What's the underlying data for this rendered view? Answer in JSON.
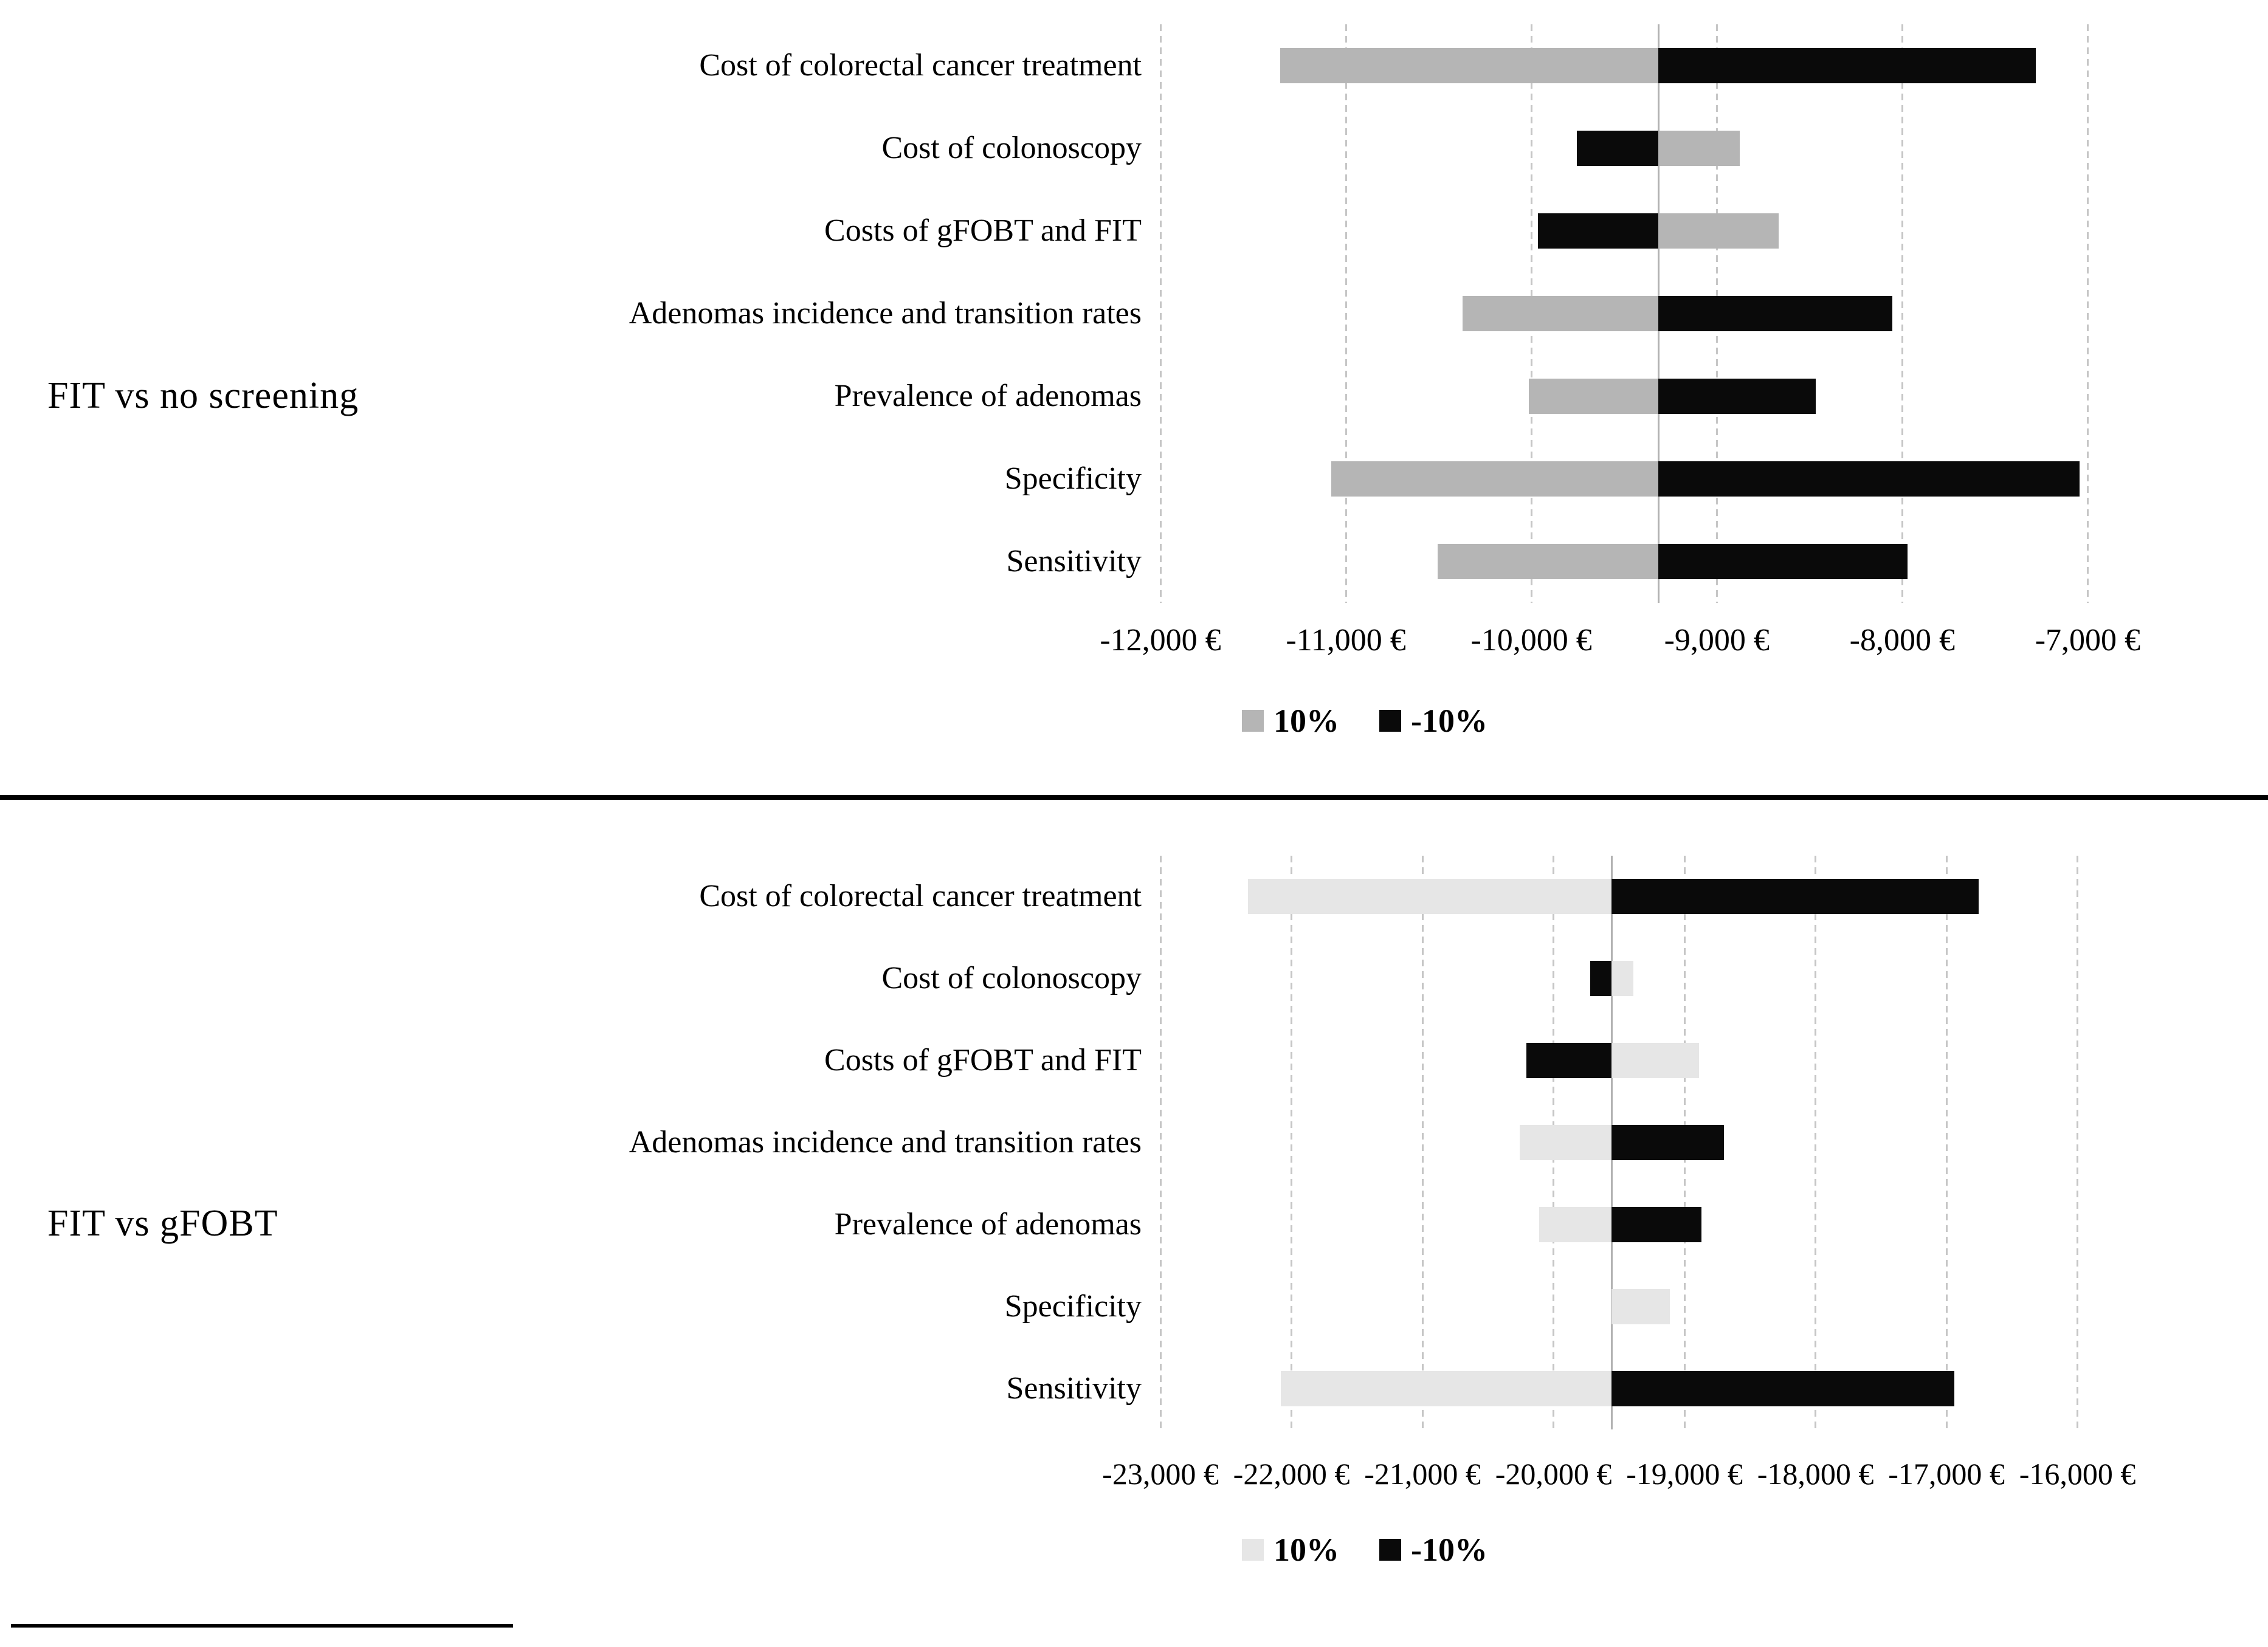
{
  "page": {
    "background": "#ffffff",
    "separator_color": "#000000",
    "gridline_color": "#c6c6c6",
    "pivot_line_color": "#b3b3b3"
  },
  "chart_data": [
    {
      "type": "bar",
      "subtype": "tornado",
      "group_label": "FIT vs no screening",
      "categories": [
        "Cost of colorectal cancer treatment",
        "Cost of colonoscopy",
        "Costs of gFOBT and FIT",
        "Adenomas incidence and transition rates",
        "Prevalence of adenomas",
        "Specificity",
        "Sensitivity"
      ],
      "series": [
        {
          "name": "10%",
          "color": "#b5b5b5",
          "values": [
            -11355,
            -8875,
            -8665,
            -10370,
            -10015,
            -11080,
            -10505
          ]
        },
        {
          "name": "-10%",
          "color": "#0a0a0a",
          "values": [
            -7280,
            -9755,
            -9965,
            -8055,
            -8465,
            -7045,
            -7970
          ]
        }
      ],
      "base_value": -9314,
      "xlim": [
        -12000,
        -6490
      ],
      "ticks": [
        {
          "value": -12000,
          "label": "-12,000 €"
        },
        {
          "value": -11000,
          "label": "-11,000 €"
        },
        {
          "value": -10000,
          "label": "-10,000 €"
        },
        {
          "value": -9000,
          "label": "-9,000 €"
        },
        {
          "value": -8000,
          "label": "-8,000 €"
        },
        {
          "value": -7000,
          "label": "-7,000 €"
        }
      ],
      "legend": [
        {
          "label": "10%",
          "color": "#b5b5b5"
        },
        {
          "label": "-10%",
          "color": "#0a0a0a"
        }
      ],
      "grid": true,
      "legend_position": "bottom-center"
    },
    {
      "type": "bar",
      "subtype": "tornado",
      "group_label": "FIT vs gFOBT",
      "categories": [
        "Cost of colorectal cancer treatment",
        "Cost of colonoscopy",
        "Costs of gFOBT and FIT",
        "Adenomas incidence and transition rates",
        "Prevalence of adenomas",
        "Specificity",
        "Sensitivity"
      ],
      "series": [
        {
          "name": "10%",
          "color": "#e6e6e6",
          "values": [
            -22330,
            -19390,
            -18890,
            -20260,
            -20110,
            -19110,
            -22080
          ]
        },
        {
          "name": "-10%",
          "color": "#0a0a0a",
          "values": [
            -16755,
            -19720,
            -20205,
            -18700,
            -18870,
            -19556,
            -16940
          ]
        }
      ],
      "base_value": -19556,
      "xlim": [
        -23000,
        -15200
      ],
      "ticks": [
        {
          "value": -23000,
          "label": "-23,000 €"
        },
        {
          "value": -22000,
          "label": "-22,000 €"
        },
        {
          "value": -21000,
          "label": "-21,000 €"
        },
        {
          "value": -20000,
          "label": "-20,000 €"
        },
        {
          "value": -19000,
          "label": "-19,000 €"
        },
        {
          "value": -18000,
          "label": "-18,000 €"
        },
        {
          "value": -17000,
          "label": "-17,000 €"
        },
        {
          "value": -16000,
          "label": "-16,000 €"
        }
      ],
      "legend": [
        {
          "label": "10%",
          "color": "#e6e6e6"
        },
        {
          "label": "-10%",
          "color": "#0a0a0a"
        }
      ],
      "grid": true,
      "legend_position": "bottom-center"
    }
  ]
}
